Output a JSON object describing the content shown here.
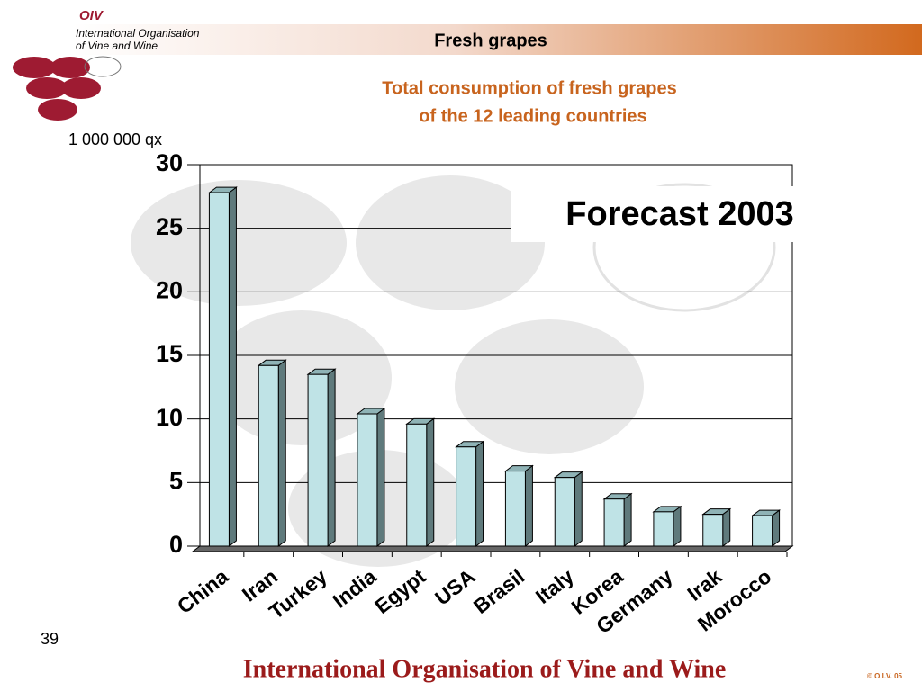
{
  "slide": {
    "logo": "OIV",
    "org_line1": "International Organisation",
    "org_line2": "of  Vine  and  Wine",
    "header": "Fresh grapes",
    "page_number": "39",
    "footer": "International Organisation of Vine and Wine",
    "copyright": "© O.I.V. 05"
  },
  "chart_data": {
    "type": "bar3d",
    "title": "Total consumption of fresh grapes",
    "subtitle": "of  the 12 leading countries",
    "y_label": "1 000 000 qx",
    "annotation": "Forecast 2003",
    "categories": [
      "China",
      "Iran",
      "Turkey",
      "India",
      "Egypt",
      "USA",
      "Brasil",
      "Italy",
      "Korea",
      "Germany",
      "Irak",
      "Morocco"
    ],
    "values": [
      27.8,
      14.2,
      13.5,
      10.4,
      9.6,
      7.8,
      5.9,
      5.4,
      3.7,
      2.7,
      2.5,
      2.4
    ],
    "color": "#bfe3e6",
    "ylim": [
      0,
      30
    ],
    "yticks": [
      0,
      5,
      10,
      15,
      20,
      25,
      30
    ],
    "grid": true
  }
}
